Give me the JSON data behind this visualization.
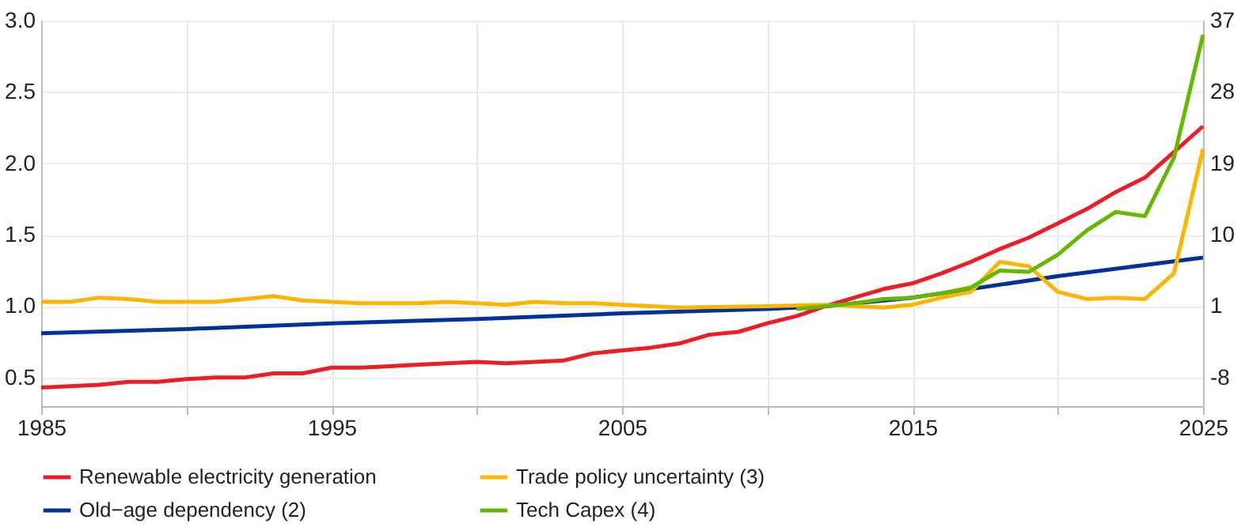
{
  "chart_data": {
    "type": "line",
    "xlim": [
      1985,
      2025
    ],
    "xticks": [
      1985,
      {
        "value": 1990,
        "label": null
      },
      1995,
      {
        "value": 2000,
        "label": null
      },
      2005,
      {
        "value": 2010,
        "label": null
      },
      2015,
      {
        "value": 2020,
        "label": null
      },
      2025
    ],
    "ylim": [
      0.3,
      3.0
    ],
    "yticks": [
      0.5,
      {
        "value": 1,
        "label": "1.0"
      },
      1.5,
      {
        "value": 2,
        "label": "2.0"
      },
      2.5,
      {
        "value": 3,
        "label": "3.0"
      }
    ],
    "y2lim": [
      -11.6,
      37
    ],
    "y2ticks": [
      -8,
      1,
      10,
      19,
      28,
      37
    ],
    "grid": true,
    "legend": "bottom",
    "line_style": "solid",
    "series": [
      {
        "name": "Renewable electricity generation",
        "color": "#ee1c25",
        "x": [
          1985,
          1986,
          1987,
          1988,
          1989,
          1990,
          1991,
          1992,
          1993,
          1994,
          1995,
          1996,
          1997,
          1998,
          1999,
          2000,
          2001,
          2002,
          2003,
          2004,
          2005,
          2006,
          2007,
          2008,
          2009,
          2010,
          2011,
          2012,
          2013,
          2014,
          2015,
          2016,
          2017,
          2018,
          2019,
          2020,
          2021,
          2022,
          2023,
          2024,
          2025
        ],
        "values": [
          0.43,
          0.44,
          0.45,
          0.47,
          0.47,
          0.49,
          0.5,
          0.5,
          0.53,
          0.53,
          0.57,
          0.57,
          0.58,
          0.59,
          0.6,
          0.61,
          0.6,
          0.61,
          0.62,
          0.67,
          0.69,
          0.71,
          0.74,
          0.8,
          0.82,
          0.88,
          0.93,
          1.0,
          1.06,
          1.12,
          1.16,
          1.23,
          1.31,
          1.4,
          1.48,
          1.58,
          1.68,
          1.8,
          1.9,
          2.08,
          2.26
        ]
      },
      {
        "name": "Old−age dependency (2)",
        "color": "#003299",
        "x": [
          1985,
          1990,
          1995,
          2000,
          2005,
          2010,
          2012,
          2015,
          2020,
          2025
        ],
        "values": [
          0.81,
          0.84,
          0.88,
          0.91,
          0.95,
          0.98,
          1.0,
          1.06,
          1.21,
          1.34
        ]
      },
      {
        "name": "Trade policy uncertainty (3)",
        "color": "#ffb400",
        "x": [
          1985,
          1986,
          1987,
          1988,
          1989,
          1990,
          1991,
          1992,
          1993,
          1994,
          1995,
          1996,
          1997,
          1998,
          1999,
          2000,
          2001,
          2002,
          2003,
          2004,
          2005,
          2007,
          2010,
          2012,
          2014,
          2015,
          2016,
          2017,
          2018,
          2019,
          2020,
          2021,
          2022,
          2023,
          2024,
          2025
        ],
        "values": [
          1.03,
          1.03,
          1.06,
          1.05,
          1.03,
          1.03,
          1.03,
          1.05,
          1.07,
          1.04,
          1.03,
          1.02,
          1.02,
          1.02,
          1.03,
          1.02,
          1.01,
          1.03,
          1.02,
          1.02,
          1.01,
          0.99,
          1.0,
          1.01,
          0.99,
          1.01,
          1.06,
          1.1,
          1.31,
          1.28,
          1.1,
          1.05,
          1.06,
          1.05,
          1.23,
          2.1
        ]
      },
      {
        "name": "Tech Capex (4)",
        "color": "#65b800",
        "x": [
          2011,
          2012,
          2013,
          2014,
          2015,
          2016,
          2017,
          2018,
          2019,
          2020,
          2021,
          2022,
          2023,
          2024,
          2025
        ],
        "values": [
          0.98,
          1.0,
          1.02,
          1.05,
          1.06,
          1.09,
          1.13,
          1.25,
          1.24,
          1.36,
          1.53,
          1.66,
          1.63,
          2.04,
          2.9
        ]
      }
    ]
  }
}
